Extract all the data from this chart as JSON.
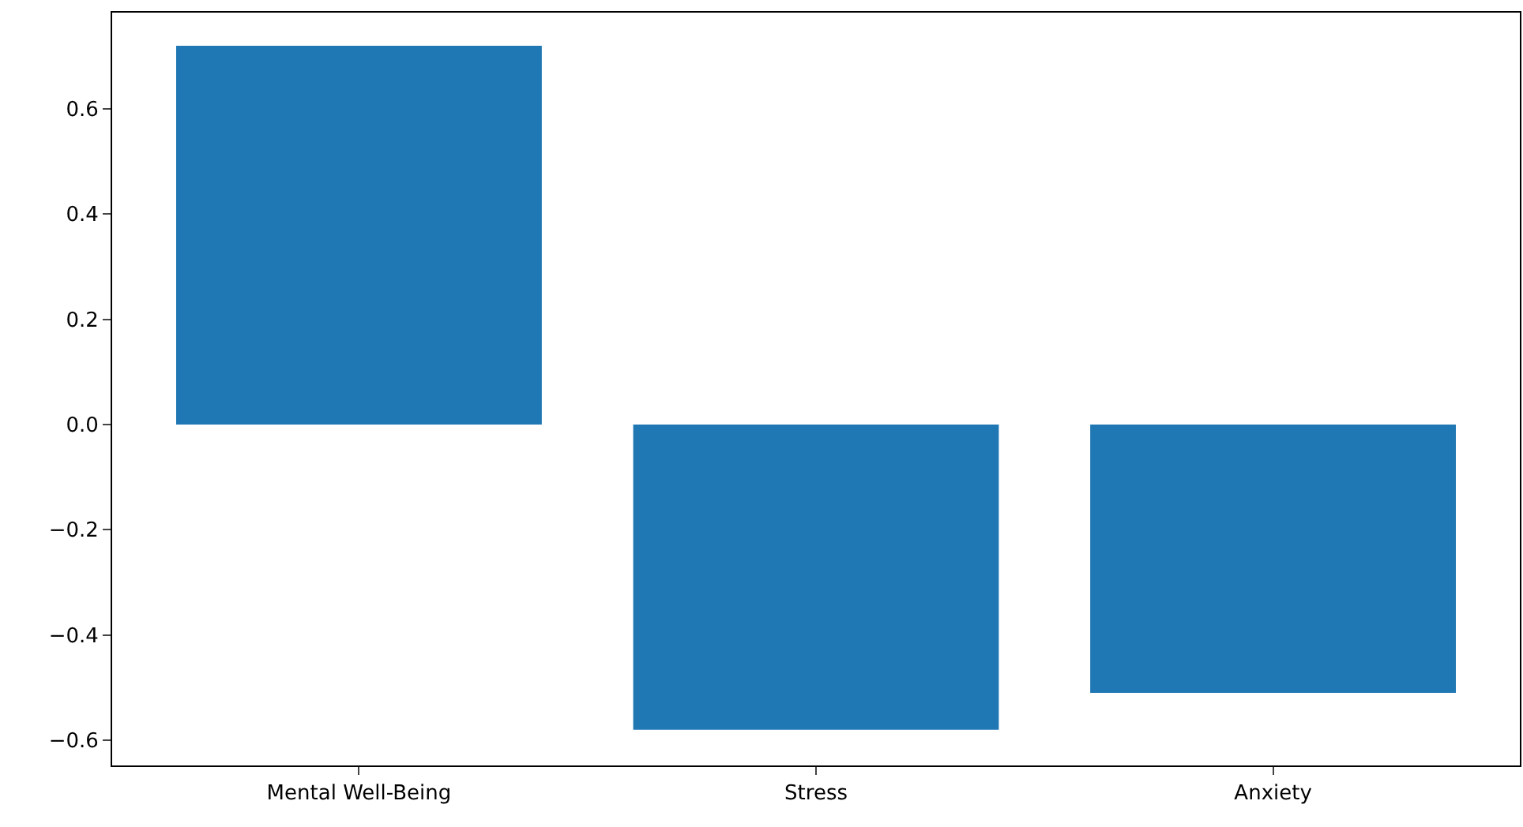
{
  "chart_data": {
    "type": "bar",
    "categories": [
      "Mental Well-Being",
      "Stress",
      "Anxiety"
    ],
    "values": [
      0.72,
      -0.58,
      -0.51
    ],
    "color": "#1f77b4",
    "ylim": [
      -0.648,
      0.783
    ],
    "yticks": [
      {
        "value": -0.6,
        "label": "−0.6"
      },
      {
        "value": -0.4,
        "label": "−0.4"
      },
      {
        "value": -0.2,
        "label": "−0.2"
      },
      {
        "value": 0.0,
        "label": "0.0"
      },
      {
        "value": 0.2,
        "label": "0.2"
      },
      {
        "value": 0.4,
        "label": "0.4"
      },
      {
        "value": 0.6,
        "label": "0.6"
      }
    ]
  }
}
